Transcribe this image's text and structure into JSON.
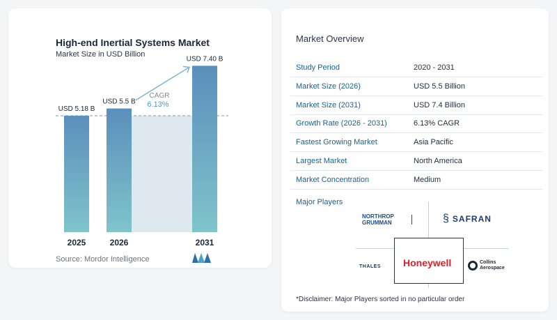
{
  "chart_title": "High-end Inertial Systems Market",
  "chart_subtitle": "Market Size in USD Billion",
  "source": "Source:  Mordor Intelligence",
  "cagr_label": "CAGR",
  "cagr_value": "6.13%",
  "chart_data": {
    "type": "bar",
    "title": "High-end Inertial Systems Market",
    "subtitle": "Market Size in USD Billion",
    "categories": [
      "2025",
      "2026",
      "2031"
    ],
    "values": [
      5.18,
      5.5,
      7.4
    ],
    "data_labels": [
      "USD 5.18 B",
      "USD 5.5 B",
      "USD 7.40 B"
    ],
    "ylim": [
      0,
      8
    ],
    "grid": false,
    "colors": {
      "bar_top": "#5b8fbc",
      "bar_bottom": "#7fc4cb",
      "shade": "#dde8ef",
      "arrow": "#7fb3d0",
      "dashed": "#8a96a3"
    }
  },
  "overview": {
    "title": "Market Overview",
    "rows": [
      {
        "label": "Study Period",
        "value": "2020 - 2031"
      },
      {
        "label": "Market Size (2026)",
        "value": "USD 5.5 Billion"
      },
      {
        "label": "Market Size (2031)",
        "value": "USD 7.4 Billion"
      },
      {
        "label": "Growth Rate (2026 - 2031)",
        "value": "6.13% CAGR"
      },
      {
        "label": "Fastest Growing Market",
        "value": "Asia Pacific"
      },
      {
        "label": "Largest Market",
        "value": "North America"
      },
      {
        "label": "Market Concentration",
        "value": "Medium"
      }
    ]
  },
  "players": {
    "title": "Major Players",
    "northrop_line1": "NORTHROP",
    "northrop_line2": "GRUMMAN",
    "safran": "SAFRAN",
    "thales": "THALES",
    "honeywell": "Honeywell",
    "collins_line1": "Collins",
    "collins_line2": "Aerospace"
  },
  "disclaimer": "*Disclaimer: Major Players sorted in no particular order"
}
